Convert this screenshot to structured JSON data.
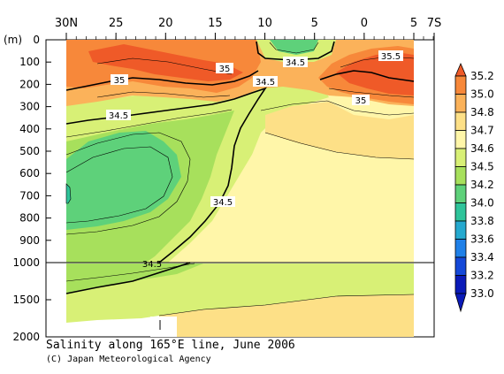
{
  "chart_data": {
    "type": "heatmap",
    "title": "Salinity along 165°E line, June 2006",
    "credit": "(C) Japan Meteorological Agency",
    "xlabel": "",
    "ylabel": "(m)",
    "x_ticks": [
      {
        "label": "30N",
        "lat": 30
      },
      {
        "label": "25",
        "lat": 25
      },
      {
        "label": "20",
        "lat": 20
      },
      {
        "label": "15",
        "lat": 15
      },
      {
        "label": "10",
        "lat": 10
      },
      {
        "label": "5",
        "lat": 5
      },
      {
        "label": "0",
        "lat": 0
      },
      {
        "label": "5",
        "lat": -5
      },
      {
        "label": "7S",
        "lat": -7
      }
    ],
    "xlim": [
      30,
      -7
    ],
    "y_upper_ticks": [
      "0",
      "100",
      "200",
      "300",
      "400",
      "500",
      "600",
      "700",
      "800",
      "900",
      "1000"
    ],
    "y_lower_ticks": [
      "1500",
      "2000"
    ],
    "ylim": [
      0,
      2000
    ],
    "y_break": 1000,
    "colorbar": {
      "labels": [
        "35.2",
        "35.0",
        "34.8",
        "34.7",
        "34.6",
        "34.5",
        "34.2",
        "34.0",
        "33.8",
        "33.6",
        "33.4",
        "33.2",
        "33.0"
      ],
      "colors": [
        "#ef5a28",
        "#f7883a",
        "#fbb25a",
        "#fde087",
        "#fff6a9",
        "#d8f076",
        "#a7e05c",
        "#5ed17a",
        "#2ec49a",
        "#25a9cf",
        "#1f80e8",
        "#1448d8",
        "#0a1ab8"
      ]
    },
    "contour_labels": [
      "35",
      "34.5",
      "35",
      "35.5",
      "34.5",
      "35",
      "34.5",
      "34.5",
      "34.5"
    ],
    "colors": {
      "salty": "#ef5a28",
      "fresh": "#3ecf80",
      "background": "#ffffff"
    }
  }
}
